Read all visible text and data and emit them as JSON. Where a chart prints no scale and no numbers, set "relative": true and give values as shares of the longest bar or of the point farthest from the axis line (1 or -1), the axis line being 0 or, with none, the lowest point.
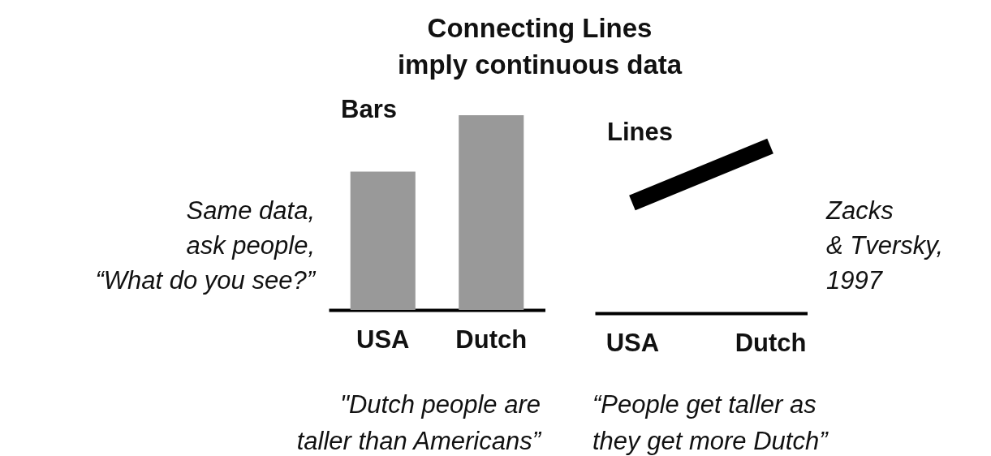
{
  "chart_data": [
    {
      "type": "bar",
      "title": "Bars",
      "categories": [
        "USA",
        "Dutch"
      ],
      "values": [
        0.71,
        1
      ],
      "relative": true,
      "color": "#999999",
      "annotations": [
        "Connecting Lines\nimply continuous data",
        "Same data,\nask people,\n“What do you see?”",
        "\"Dutch people are\ntaller than Americans”"
      ]
    },
    {
      "type": "line",
      "title": "Lines",
      "categories": [
        "USA",
        "Dutch"
      ],
      "values": [
        0.66,
        1
      ],
      "relative": true,
      "color": "#000000",
      "annotations": [
        "Zacks\n& Tversky,\n1997",
        "“People get taller as\nthey get more Dutch”"
      ]
    }
  ]
}
